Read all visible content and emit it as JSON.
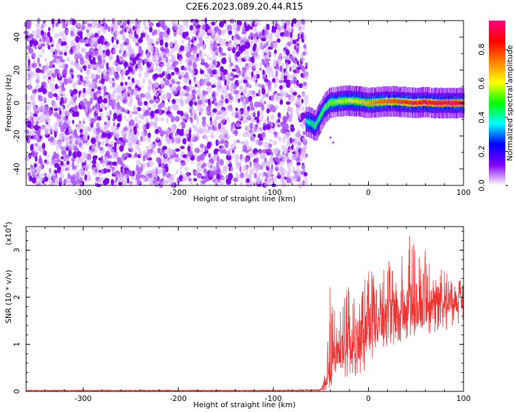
{
  "title": "C2E6.2023.089.20.44.R15",
  "chart_data": [
    {
      "type": "heatmap",
      "title": "C2E6.2023.089.20.44.R15",
      "xlabel": "Height of straight line (km)",
      "ylabel": "Frequency (Hz)",
      "xlim": [
        -360,
        100
      ],
      "ylim": [
        -50,
        50
      ],
      "x_ticks": [
        -300,
        -200,
        -100,
        0,
        100
      ],
      "y_ticks": [
        -40,
        -20,
        0,
        20,
        40
      ],
      "colorbar": {
        "label": "Normalized spectral amplitude",
        "range": [
          0,
          0.97
        ],
        "ticks": [
          "0.0",
          "0.2",
          "0.4",
          "0.6",
          "0.8"
        ],
        "tick_values": [
          0.0,
          0.2,
          0.4,
          0.6,
          0.8
        ],
        "colormap": [
          "#ffffff",
          "#8000ff",
          "#0000ff",
          "#00ffff",
          "#00ff00",
          "#ffff00",
          "#ff8000",
          "#ff0000",
          "#ff0080"
        ]
      },
      "noise_region": {
        "x_range": [
          -360,
          -65
        ],
        "freq_range": [
          -50,
          50
        ],
        "amplitude_range": [
          0.0,
          0.08
        ]
      },
      "signal_ridge": [
        {
          "x": -65,
          "freq": -11,
          "amp": 0.4
        },
        {
          "x": -60,
          "freq": -12,
          "amp": 0.45
        },
        {
          "x": -55,
          "freq": -14,
          "amp": 0.5
        },
        {
          "x": -50,
          "freq": -8,
          "amp": 0.5
        },
        {
          "x": -45,
          "freq": -3,
          "amp": 0.55
        },
        {
          "x": -40,
          "freq": 0,
          "amp": 0.55
        },
        {
          "x": -30,
          "freq": 1,
          "amp": 0.6
        },
        {
          "x": -20,
          "freq": 1.5,
          "amp": 0.6
        },
        {
          "x": -10,
          "freq": 1,
          "amp": 0.65
        },
        {
          "x": 0,
          "freq": 0,
          "amp": 0.7
        },
        {
          "x": 10,
          "freq": 0.5,
          "amp": 0.75
        },
        {
          "x": 20,
          "freq": 1,
          "amp": 0.8
        },
        {
          "x": 30,
          "freq": 1,
          "amp": 0.8
        },
        {
          "x": 40,
          "freq": 0.5,
          "amp": 0.85
        },
        {
          "x": 50,
          "freq": 0,
          "amp": 0.85
        },
        {
          "x": 60,
          "freq": 0.5,
          "amp": 0.9
        },
        {
          "x": 70,
          "freq": 0,
          "amp": 0.9
        },
        {
          "x": 80,
          "freq": 0,
          "amp": 0.95
        },
        {
          "x": 90,
          "freq": 0,
          "amp": 0.95
        },
        {
          "x": 100,
          "freq": 0,
          "amp": 0.9
        }
      ],
      "grid": false
    },
    {
      "type": "line",
      "xlabel": "Height of straight line (km)",
      "ylabel": "SNR (10 * v/v)",
      "y_multiplier_label": "(x10",
      "y_multiplier_exp": "4",
      "y_multiplier_close": ")",
      "xlim": [
        -360,
        100
      ],
      "ylim": [
        0,
        3.5
      ],
      "x_ticks": [
        -300,
        -200,
        -100,
        0,
        100
      ],
      "y_ticks": [
        0,
        1,
        2,
        3
      ],
      "line_color": "#ee3333",
      "series": [
        {
          "x": [
            -360,
            -200,
            -100,
            -50,
            -45,
            -42,
            -40,
            -38,
            -35,
            -30,
            -25,
            -20,
            -15,
            -10,
            -5,
            0,
            5,
            10,
            15,
            20,
            25,
            30,
            35,
            40,
            45,
            50,
            55,
            60,
            65,
            70,
            75,
            80,
            85,
            90,
            95,
            100
          ],
          "values": [
            0.02,
            0.02,
            0.02,
            0.03,
            0.15,
            0.4,
            0.55,
            0.7,
            0.75,
            0.8,
            0.85,
            0.95,
            1.05,
            1.1,
            1.2,
            1.3,
            1.4,
            1.45,
            1.55,
            1.6,
            1.65,
            1.7,
            1.75,
            1.8,
            1.85,
            1.85,
            1.9,
            1.9,
            1.85,
            1.8,
            1.8,
            1.85,
            1.9,
            1.85,
            1.95,
            1.95
          ],
          "upper_envelope": [
            0.03,
            0.03,
            0.03,
            0.05,
            0.5,
            1.4,
            2.35,
            1.9,
            1.8,
            1.9,
            2.0,
            2.4,
            2.3,
            2.3,
            2.5,
            2.7,
            2.6,
            2.7,
            2.9,
            2.8,
            3.0,
            3.1,
            3.0,
            3.2,
            3.35,
            3.45,
            3.1,
            3.2,
            2.9,
            2.95,
            2.6,
            2.6,
            2.5,
            2.4,
            2.4,
            2.3
          ],
          "lower_envelope": [
            0.0,
            0.0,
            0.0,
            0.0,
            0.0,
            0.05,
            0.1,
            0.1,
            0.2,
            0.2,
            0.2,
            0.3,
            0.3,
            0.35,
            0.4,
            0.5,
            0.6,
            0.7,
            0.8,
            0.9,
            0.95,
            1.0,
            1.05,
            1.1,
            1.15,
            1.2,
            1.2,
            1.25,
            1.2,
            1.2,
            1.25,
            1.3,
            1.3,
            1.35,
            1.35,
            1.4
          ]
        }
      ],
      "grid": false
    }
  ]
}
